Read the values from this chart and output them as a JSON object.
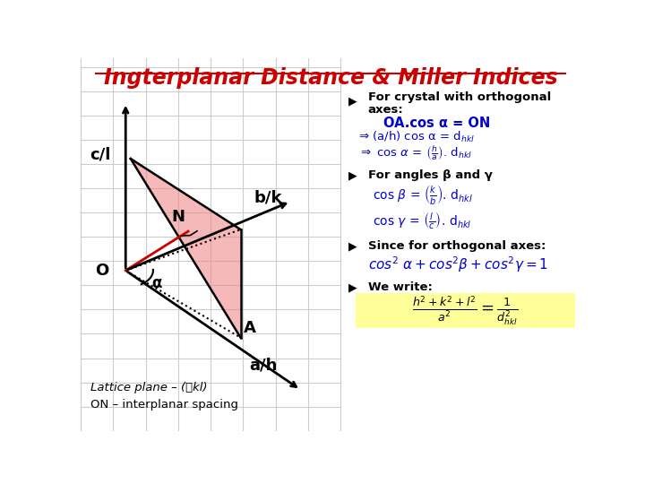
{
  "title": "Ingterplanar Distance & Miller Indices",
  "title_color": "#CC0000",
  "title_fontsize": 17,
  "bg_color": "#FFFFFF",
  "grid_color": "#CCCCCC",
  "diagram": {
    "label_cl": "c/l",
    "label_bk": "b/k",
    "label_ah": "a/h",
    "label_O": "O",
    "label_A": "A",
    "label_N": "N",
    "label_alpha": "α"
  },
  "pink_fill": "#F08080",
  "pink_alpha": 0.55,
  "line_color": "#000000",
  "red_line_color": "#CC0000",
  "blue_color": "#0000CC",
  "yellow_bg": "#FFFF99"
}
